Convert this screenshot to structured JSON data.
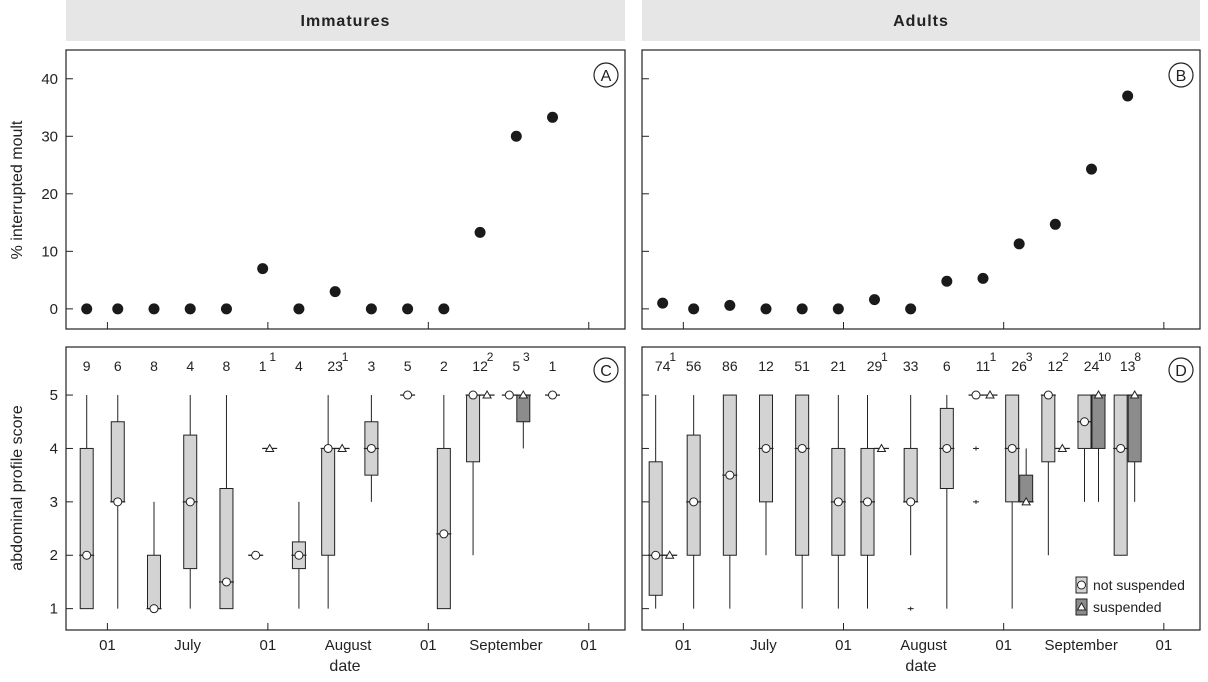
{
  "panel_titles": [
    "Immatures",
    "Adults"
  ],
  "panel_labels": [
    "A",
    "B",
    "C",
    "D"
  ],
  "y_label_top": "% interrupted moult",
  "y_label_bottom": "abdominal profile score",
  "x_label": "date",
  "x_axis": {
    "ticks": [
      0,
      31,
      62,
      93
    ],
    "tick_labels": [
      "01",
      "01",
      "01",
      "01"
    ],
    "month_labels": [
      {
        "label": "July",
        "day": 15.5
      },
      {
        "label": "August",
        "day": 46.5
      },
      {
        "label": "September",
        "day": 77
      }
    ],
    "xlim": [
      -8,
      100
    ]
  },
  "top_y": {
    "ylim": [
      -3.5,
      45
    ],
    "ticks": [
      0,
      10,
      20,
      30,
      40
    ]
  },
  "bottom_y": {
    "ylim": [
      0.6,
      5.9
    ],
    "ticks": [
      1,
      2,
      3,
      4,
      5
    ]
  },
  "legend": {
    "items": [
      "not suspended",
      "suspended"
    ]
  },
  "colors": {
    "not_suspended_fill": "#d3d3d3",
    "suspended_fill": "#8c8c8c",
    "strip_fill": "#e6e6e6",
    "point": "#1a1a1a"
  },
  "chart_data": [
    {
      "type": "scatter",
      "panel": "A",
      "group": "Immatures",
      "xlabel": "date",
      "ylabel": "% interrupted moult",
      "ylim": [
        -3.5,
        45
      ],
      "x_units": "days since 01 June",
      "x": [
        -4,
        2,
        9,
        16,
        23,
        30,
        37,
        44,
        51,
        58,
        65,
        72,
        79,
        86
      ],
      "y": [
        0,
        0,
        0,
        0,
        0,
        7,
        0,
        3,
        0,
        0,
        0,
        13.3,
        30,
        33.3
      ]
    },
    {
      "type": "scatter",
      "panel": "B",
      "group": "Adults",
      "xlabel": "date",
      "ylabel": "% interrupted moult",
      "ylim": [
        -3.5,
        45
      ],
      "x_units": "days since 01 June",
      "x": [
        -4,
        2,
        9,
        16,
        23,
        30,
        37,
        44,
        51,
        58,
        65,
        72,
        79,
        86
      ],
      "y": [
        1,
        0,
        0.6,
        0,
        0,
        0,
        1.6,
        0,
        4.8,
        5.3,
        11.3,
        14.7,
        24.3,
        37
      ]
    },
    {
      "type": "box",
      "panel": "C",
      "group": "Immatures",
      "xlabel": "date",
      "ylabel": "abdominal profile score",
      "ylim": [
        0.6,
        5.9
      ],
      "not_suspended": [
        {
          "x": -4,
          "n": "9",
          "q1": 1,
          "q3": 4,
          "median": 2,
          "lo": 1,
          "hi": 5
        },
        {
          "x": 2,
          "n": "6",
          "q1": 3,
          "q3": 4.5,
          "median": 3,
          "lo": 1,
          "hi": 5
        },
        {
          "x": 9,
          "n": "8",
          "q1": 1,
          "q3": 2,
          "median": 1,
          "lo": 1,
          "hi": 3
        },
        {
          "x": 16,
          "n": "4",
          "q1": 1.75,
          "q3": 4.25,
          "median": 3,
          "lo": 1,
          "hi": 5
        },
        {
          "x": 23,
          "n": "8",
          "q1": 1,
          "q3": 3.25,
          "median": 1.5,
          "lo": 1,
          "hi": 5
        },
        {
          "x": 30,
          "n": "1",
          "q1": 2,
          "q3": 2,
          "median": 2,
          "lo": 2,
          "hi": 2
        },
        {
          "x": 37,
          "n": "4",
          "q1": 1.75,
          "q3": 2.25,
          "median": 2,
          "lo": 1,
          "hi": 3
        },
        {
          "x": 44,
          "n": "23",
          "q1": 2,
          "q3": 4,
          "median": 4,
          "lo": 1,
          "hi": 5
        },
        {
          "x": 51,
          "n": "3",
          "q1": 3.5,
          "q3": 4.5,
          "median": 4,
          "lo": 3,
          "hi": 5
        },
        {
          "x": 58,
          "n": "5",
          "q1": 5,
          "q3": 5,
          "median": 5,
          "lo": 5,
          "hi": 5
        },
        {
          "x": 65,
          "n": "2",
          "q1": 1,
          "q3": 4,
          "median": 2.4,
          "lo": 1,
          "hi": 5
        },
        {
          "x": 72,
          "n": "12",
          "q1": 3.75,
          "q3": 5,
          "median": 5,
          "lo": 2,
          "hi": 5
        },
        {
          "x": 79,
          "n": "5",
          "q1": 5,
          "q3": 5,
          "median": 5,
          "lo": 5,
          "hi": 5
        },
        {
          "x": 86,
          "n": "1",
          "q1": 5,
          "q3": 5,
          "median": 5,
          "lo": 5,
          "hi": 5
        }
      ],
      "suspended": [
        {
          "x": 30,
          "n": "1",
          "q1": 4,
          "q3": 4,
          "median": 4,
          "lo": 4,
          "hi": 4
        },
        {
          "x": 44,
          "n": "1",
          "q1": 4,
          "q3": 4,
          "median": 4,
          "lo": 4,
          "hi": 4
        },
        {
          "x": 72,
          "n": "2",
          "q1": 5,
          "q3": 5,
          "median": 5,
          "lo": 5,
          "hi": 5
        },
        {
          "x": 79,
          "n": "3",
          "q1": 4.5,
          "q3": 5,
          "median": 5,
          "lo": 4,
          "hi": 5
        }
      ],
      "outliers": []
    },
    {
      "type": "box",
      "panel": "D",
      "group": "Adults",
      "xlabel": "date",
      "ylabel": "abdominal profile score",
      "ylim": [
        0.6,
        5.9
      ],
      "not_suspended": [
        {
          "x": -4,
          "n": "74",
          "q1": 1.25,
          "q3": 3.75,
          "median": 2,
          "lo": 1,
          "hi": 5
        },
        {
          "x": 2,
          "n": "56",
          "q1": 2,
          "q3": 4.25,
          "median": 3,
          "lo": 1,
          "hi": 5
        },
        {
          "x": 9,
          "n": "86",
          "q1": 2,
          "q3": 5,
          "median": 3.5,
          "lo": 1,
          "hi": 5
        },
        {
          "x": 16,
          "n": "12",
          "q1": 3,
          "q3": 5,
          "median": 4,
          "lo": 2,
          "hi": 5
        },
        {
          "x": 23,
          "n": "51",
          "q1": 2,
          "q3": 5,
          "median": 4,
          "lo": 1,
          "hi": 5
        },
        {
          "x": 30,
          "n": "21",
          "q1": 2,
          "q3": 4,
          "median": 3,
          "lo": 1,
          "hi": 5
        },
        {
          "x": 37,
          "n": "29",
          "q1": 2,
          "q3": 4,
          "median": 3,
          "lo": 1,
          "hi": 5
        },
        {
          "x": 44,
          "n": "33",
          "q1": 3,
          "q3": 4,
          "median": 3,
          "lo": 2,
          "hi": 5
        },
        {
          "x": 51,
          "n": "6",
          "q1": 3.25,
          "q3": 4.75,
          "median": 4,
          "lo": 1,
          "hi": 5
        },
        {
          "x": 58,
          "n": "11",
          "q1": 5,
          "q3": 5,
          "median": 5,
          "lo": 5,
          "hi": 5
        },
        {
          "x": 65,
          "n": "26",
          "q1": 3,
          "q3": 5,
          "median": 4,
          "lo": 1,
          "hi": 5
        },
        {
          "x": 72,
          "n": "12",
          "q1": 3.75,
          "q3": 5,
          "median": 5,
          "lo": 2,
          "hi": 5
        },
        {
          "x": 79,
          "n": "24",
          "q1": 4,
          "q3": 5,
          "median": 4.5,
          "lo": 3,
          "hi": 5
        },
        {
          "x": 86,
          "n": "13",
          "q1": 2,
          "q3": 5,
          "median": 4,
          "lo": 2,
          "hi": 5
        }
      ],
      "suspended": [
        {
          "x": -4,
          "n": "1",
          "q1": 2,
          "q3": 2,
          "median": 2,
          "lo": 2,
          "hi": 2
        },
        {
          "x": 37,
          "n": "1",
          "q1": 4,
          "q3": 4,
          "median": 4,
          "lo": 4,
          "hi": 4
        },
        {
          "x": 58,
          "n": "1",
          "q1": 5,
          "q3": 5,
          "median": 5,
          "lo": 5,
          "hi": 5
        },
        {
          "x": 65,
          "n": "3",
          "q1": 3,
          "q3": 3.5,
          "median": 3,
          "lo": 3,
          "hi": 4
        },
        {
          "x": 72,
          "n": "2",
          "q1": 4,
          "q3": 4,
          "median": 4,
          "lo": 4,
          "hi": 4
        },
        {
          "x": 79,
          "n": "10",
          "q1": 4,
          "q3": 5,
          "median": 5,
          "lo": 3,
          "hi": 5
        },
        {
          "x": 86,
          "n": "8",
          "q1": 3.75,
          "q3": 5,
          "median": 5,
          "lo": 3,
          "hi": 5
        }
      ],
      "outliers": [
        {
          "x": 44,
          "y": 1
        },
        {
          "x": 58,
          "y": 4
        },
        {
          "x": 58,
          "y": 3
        }
      ]
    }
  ]
}
